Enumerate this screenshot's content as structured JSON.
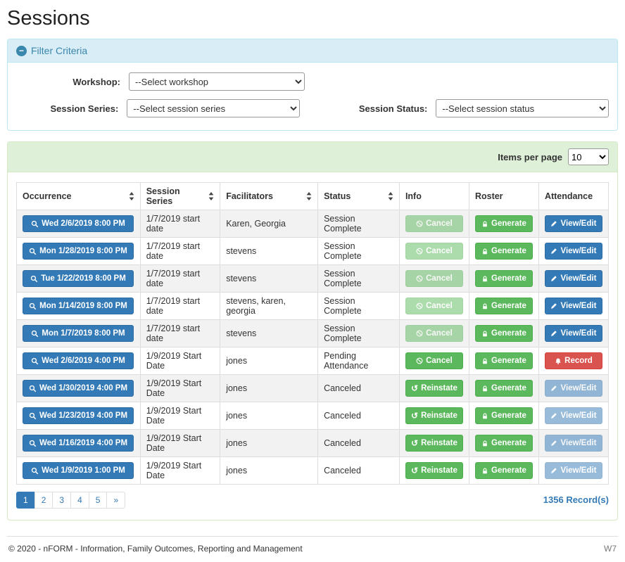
{
  "page": {
    "title": "Sessions"
  },
  "colors": {
    "primary": "#337ab7",
    "success": "#5cb85c",
    "danger": "#d9534f",
    "info_panel": "#d9edf7",
    "green_panel": "#dff0d8"
  },
  "filter": {
    "title": "Filter Criteria",
    "workshop_label": "Workshop:",
    "workshop_value": "--Select workshop",
    "series_label": "Session Series:",
    "series_value": "--Select session series",
    "status_label": "Session Status:",
    "status_value": "--Select session status"
  },
  "table": {
    "items_per_page_label": "Items per page",
    "items_per_page_value": "10",
    "headers": {
      "occurrence": "Occurrence",
      "series": "Session Series",
      "facilitators": "Facilitators",
      "status": "Status",
      "info": "Info",
      "roster": "Roster",
      "attendance": "Attendance"
    },
    "rows": [
      {
        "occurrence": "Wed 2/6/2019 8:00 PM",
        "series": "1/7/2019 start date",
        "facilitators": "Karen, Georgia",
        "status": "Session Complete",
        "info": "Cancel",
        "roster": "Generate",
        "attendance": "View/Edit"
      },
      {
        "occurrence": "Mon 1/28/2019 8:00 PM",
        "series": "1/7/2019 start date",
        "facilitators": "stevens",
        "status": "Session Complete",
        "info": "Cancel",
        "roster": "Generate",
        "attendance": "View/Edit"
      },
      {
        "occurrence": "Tue 1/22/2019 8:00 PM",
        "series": "1/7/2019 start date",
        "facilitators": "stevens",
        "status": "Session Complete",
        "info": "Cancel",
        "roster": "Generate",
        "attendance": "View/Edit"
      },
      {
        "occurrence": "Mon 1/14/2019 8:00 PM",
        "series": "1/7/2019 start date",
        "facilitators": "stevens, karen, georgia",
        "status": "Session Complete",
        "info": "Cancel",
        "roster": "Generate",
        "attendance": "View/Edit"
      },
      {
        "occurrence": "Mon 1/7/2019 8:00 PM",
        "series": "1/7/2019 start date",
        "facilitators": "stevens",
        "status": "Session Complete",
        "info": "Cancel",
        "roster": "Generate",
        "attendance": "View/Edit"
      },
      {
        "occurrence": "Wed 2/6/2019 4:00 PM",
        "series": "1/9/2019 Start Date",
        "facilitators": "jones",
        "status": "Pending Attendance",
        "info": "Cancel",
        "roster": "Generate",
        "attendance": "Record"
      },
      {
        "occurrence": "Wed 1/30/2019 4:00 PM",
        "series": "1/9/2019 Start Date",
        "facilitators": "jones",
        "status": "Canceled",
        "info": "Reinstate",
        "roster": "Generate",
        "attendance": "View/Edit"
      },
      {
        "occurrence": "Wed 1/23/2019 4:00 PM",
        "series": "1/9/2019 Start Date",
        "facilitators": "jones",
        "status": "Canceled",
        "info": "Reinstate",
        "roster": "Generate",
        "attendance": "View/Edit"
      },
      {
        "occurrence": "Wed 1/16/2019 4:00 PM",
        "series": "1/9/2019 Start Date",
        "facilitators": "jones",
        "status": "Canceled",
        "info": "Reinstate",
        "roster": "Generate",
        "attendance": "View/Edit"
      },
      {
        "occurrence": "Wed 1/9/2019 1:00 PM",
        "series": "1/9/2019 Start Date",
        "facilitators": "jones",
        "status": "Canceled",
        "info": "Reinstate",
        "roster": "Generate",
        "attendance": "View/Edit"
      }
    ],
    "pagination": [
      "1",
      "2",
      "3",
      "4",
      "5",
      "»"
    ],
    "records_text": "1356 Record(s)"
  },
  "footer": {
    "text": "© 2020 - nFORM - Information, Family Outcomes, Reporting and Management",
    "right": "W7"
  }
}
